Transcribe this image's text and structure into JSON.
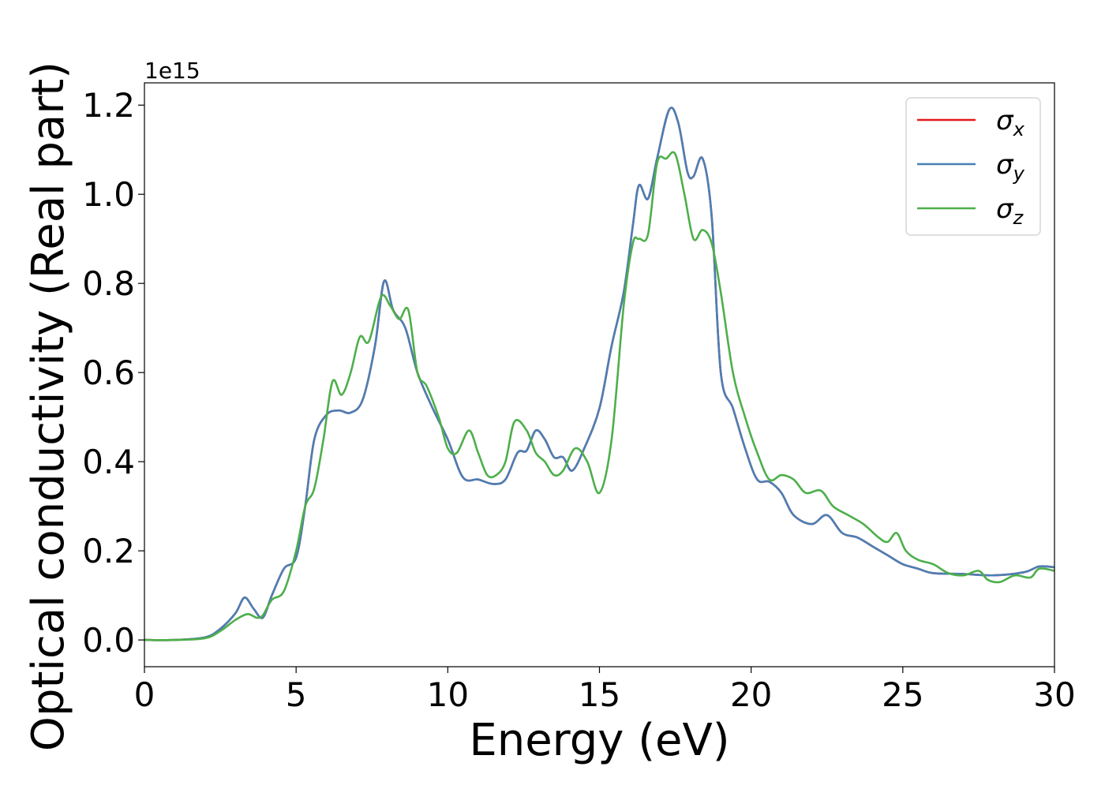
{
  "chart_data": {
    "type": "line",
    "xlabel": "Energy (eV)",
    "ylabel": "Optical conductivity (Real part)",
    "y_offset_text": "1e15",
    "xlim": [
      0,
      30
    ],
    "ylim": [
      -0.06,
      1.25
    ],
    "xticks": [
      0,
      5,
      10,
      15,
      20,
      25,
      30
    ],
    "xtick_labels": [
      "0",
      "5",
      "10",
      "15",
      "20",
      "25",
      "30"
    ],
    "yticks": [
      0.0,
      0.2,
      0.4,
      0.6,
      0.8,
      1.0,
      1.2
    ],
    "ytick_labels": [
      "0.0",
      "0.2",
      "0.4",
      "0.6",
      "0.8",
      "1.0",
      "1.2"
    ],
    "grid": false,
    "legend_position": "top-right",
    "series": [
      {
        "name": "σx",
        "symbol": "σ",
        "subscript": "x",
        "color": "#e41a1c",
        "x": [
          0,
          1,
          2,
          2.5,
          3,
          3.3,
          3.6,
          3.9,
          4.2,
          4.6,
          5,
          5.3,
          5.6,
          6,
          6.4,
          6.8,
          7.2,
          7.6,
          7.9,
          8.2,
          8.6,
          9,
          9.5,
          10,
          10.5,
          11,
          11.5,
          11.9,
          12.3,
          12.6,
          12.9,
          13.2,
          13.5,
          13.8,
          14.1,
          14.5,
          15,
          15.4,
          15.8,
          16.1,
          16.3,
          16.6,
          16.9,
          17.3,
          17.6,
          17.9,
          18.1,
          18.4,
          18.7,
          19,
          19.4,
          19.8,
          20.2,
          20.6,
          21,
          21.4,
          22,
          22.5,
          23,
          23.5,
          24,
          24.5,
          25,
          25.5,
          26,
          27,
          28,
          29,
          29.5,
          30
        ],
        "y": [
          0.0,
          0.0,
          0.006,
          0.025,
          0.06,
          0.095,
          0.07,
          0.05,
          0.1,
          0.16,
          0.185,
          0.3,
          0.45,
          0.505,
          0.515,
          0.51,
          0.54,
          0.66,
          0.805,
          0.74,
          0.7,
          0.6,
          0.52,
          0.45,
          0.365,
          0.36,
          0.35,
          0.36,
          0.42,
          0.425,
          0.47,
          0.45,
          0.41,
          0.41,
          0.38,
          0.43,
          0.52,
          0.66,
          0.78,
          0.93,
          1.02,
          0.99,
          1.08,
          1.19,
          1.16,
          1.05,
          1.04,
          1.08,
          0.95,
          0.6,
          0.52,
          0.43,
          0.36,
          0.355,
          0.33,
          0.28,
          0.26,
          0.28,
          0.24,
          0.23,
          0.21,
          0.19,
          0.17,
          0.16,
          0.15,
          0.148,
          0.145,
          0.152,
          0.165,
          0.163
        ]
      },
      {
        "name": "σy",
        "symbol": "σ",
        "subscript": "y",
        "color": "#4a7fb5",
        "x": [
          0,
          1,
          2,
          2.5,
          3,
          3.3,
          3.6,
          3.9,
          4.2,
          4.6,
          5,
          5.3,
          5.6,
          6,
          6.4,
          6.8,
          7.2,
          7.6,
          7.9,
          8.2,
          8.6,
          9,
          9.5,
          10,
          10.5,
          11,
          11.5,
          11.9,
          12.3,
          12.6,
          12.9,
          13.2,
          13.5,
          13.8,
          14.1,
          14.5,
          15,
          15.4,
          15.8,
          16.1,
          16.3,
          16.6,
          16.9,
          17.3,
          17.6,
          17.9,
          18.1,
          18.4,
          18.7,
          19,
          19.4,
          19.8,
          20.2,
          20.6,
          21,
          21.4,
          22,
          22.5,
          23,
          23.5,
          24,
          24.5,
          25,
          25.5,
          26,
          27,
          28,
          29,
          29.5,
          30
        ],
        "y": [
          0.0,
          0.0,
          0.006,
          0.025,
          0.06,
          0.095,
          0.07,
          0.05,
          0.1,
          0.16,
          0.185,
          0.3,
          0.45,
          0.505,
          0.515,
          0.51,
          0.54,
          0.66,
          0.805,
          0.74,
          0.7,
          0.6,
          0.52,
          0.45,
          0.365,
          0.36,
          0.35,
          0.36,
          0.42,
          0.425,
          0.47,
          0.45,
          0.41,
          0.41,
          0.38,
          0.43,
          0.52,
          0.66,
          0.78,
          0.93,
          1.02,
          0.99,
          1.08,
          1.19,
          1.16,
          1.05,
          1.04,
          1.08,
          0.95,
          0.6,
          0.52,
          0.43,
          0.36,
          0.355,
          0.33,
          0.28,
          0.26,
          0.28,
          0.24,
          0.23,
          0.21,
          0.19,
          0.17,
          0.16,
          0.15,
          0.148,
          0.145,
          0.152,
          0.165,
          0.163
        ]
      },
      {
        "name": "σz",
        "symbol": "σ",
        "subscript": "z",
        "color": "#4daf4a",
        "x": [
          0,
          1,
          2,
          2.5,
          3,
          3.4,
          3.7,
          3.9,
          4.2,
          4.6,
          5,
          5.3,
          5.6,
          5.9,
          6.2,
          6.5,
          6.8,
          7.1,
          7.4,
          7.8,
          8.1,
          8.4,
          8.7,
          9,
          9.3,
          9.7,
          10,
          10.3,
          10.7,
          11,
          11.3,
          11.6,
          11.9,
          12.2,
          12.6,
          12.9,
          13.2,
          13.5,
          13.8,
          14.2,
          14.6,
          15,
          15.4,
          15.8,
          16.1,
          16.3,
          16.6,
          16.9,
          17.2,
          17.5,
          17.8,
          18.1,
          18.4,
          18.7,
          19,
          19.4,
          19.8,
          20.2,
          20.6,
          21,
          21.4,
          21.8,
          22.3,
          22.7,
          23.2,
          23.7,
          24.2,
          24.5,
          24.8,
          25.1,
          25.5,
          26,
          26.5,
          27,
          27.5,
          27.8,
          28.2,
          28.7,
          29.2,
          29.5,
          30
        ],
        "y": [
          0.0,
          0.0,
          0.004,
          0.02,
          0.045,
          0.058,
          0.05,
          0.055,
          0.09,
          0.11,
          0.2,
          0.3,
          0.34,
          0.45,
          0.58,
          0.55,
          0.6,
          0.68,
          0.67,
          0.77,
          0.75,
          0.72,
          0.74,
          0.6,
          0.57,
          0.5,
          0.43,
          0.42,
          0.47,
          0.42,
          0.37,
          0.37,
          0.4,
          0.49,
          0.47,
          0.42,
          0.4,
          0.37,
          0.38,
          0.43,
          0.4,
          0.33,
          0.45,
          0.75,
          0.89,
          0.9,
          0.91,
          1.07,
          1.08,
          1.09,
          1.0,
          0.9,
          0.92,
          0.89,
          0.78,
          0.6,
          0.5,
          0.42,
          0.36,
          0.37,
          0.36,
          0.33,
          0.335,
          0.3,
          0.28,
          0.26,
          0.23,
          0.22,
          0.24,
          0.2,
          0.18,
          0.17,
          0.15,
          0.145,
          0.155,
          0.135,
          0.13,
          0.145,
          0.14,
          0.16,
          0.155
        ]
      }
    ]
  }
}
